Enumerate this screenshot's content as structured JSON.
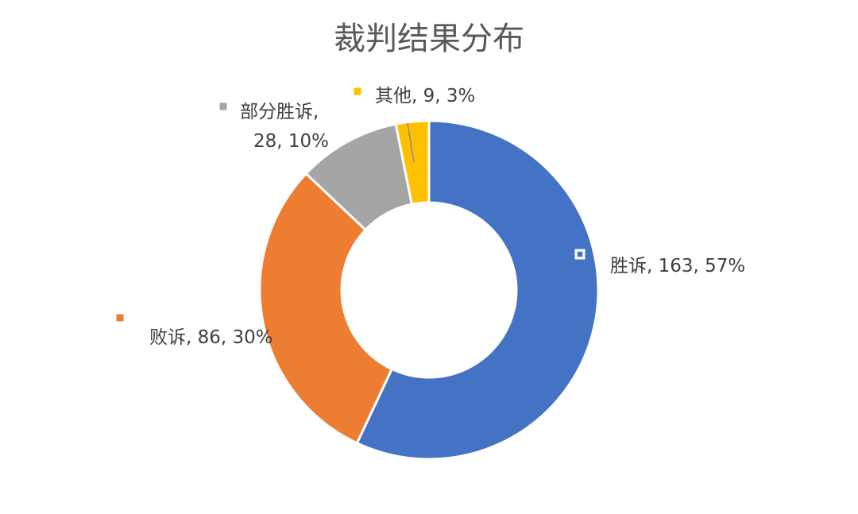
{
  "chart_data": {
    "type": "pie",
    "variant": "donut",
    "title": "裁判结果分布",
    "categories": [
      "胜诉",
      "败诉",
      "部分胜诉",
      "其他"
    ],
    "values": [
      163,
      86,
      28,
      9
    ],
    "percent_labels": [
      "57%",
      "30%",
      "10%",
      "3%"
    ],
    "colors": [
      "#4472C4",
      "#ED7D31",
      "#A5A5A5",
      "#FFC000"
    ],
    "data_labels": [
      {
        "lines": [
          "胜诉, 163, 57%"
        ]
      },
      {
        "lines": [
          "败诉, 86, 30%"
        ]
      },
      {
        "lines": [
          "部分胜诉,",
          "28, 10%"
        ]
      },
      {
        "lines": [
          "其他, 9, 3%"
        ]
      }
    ],
    "legend": "none"
  }
}
